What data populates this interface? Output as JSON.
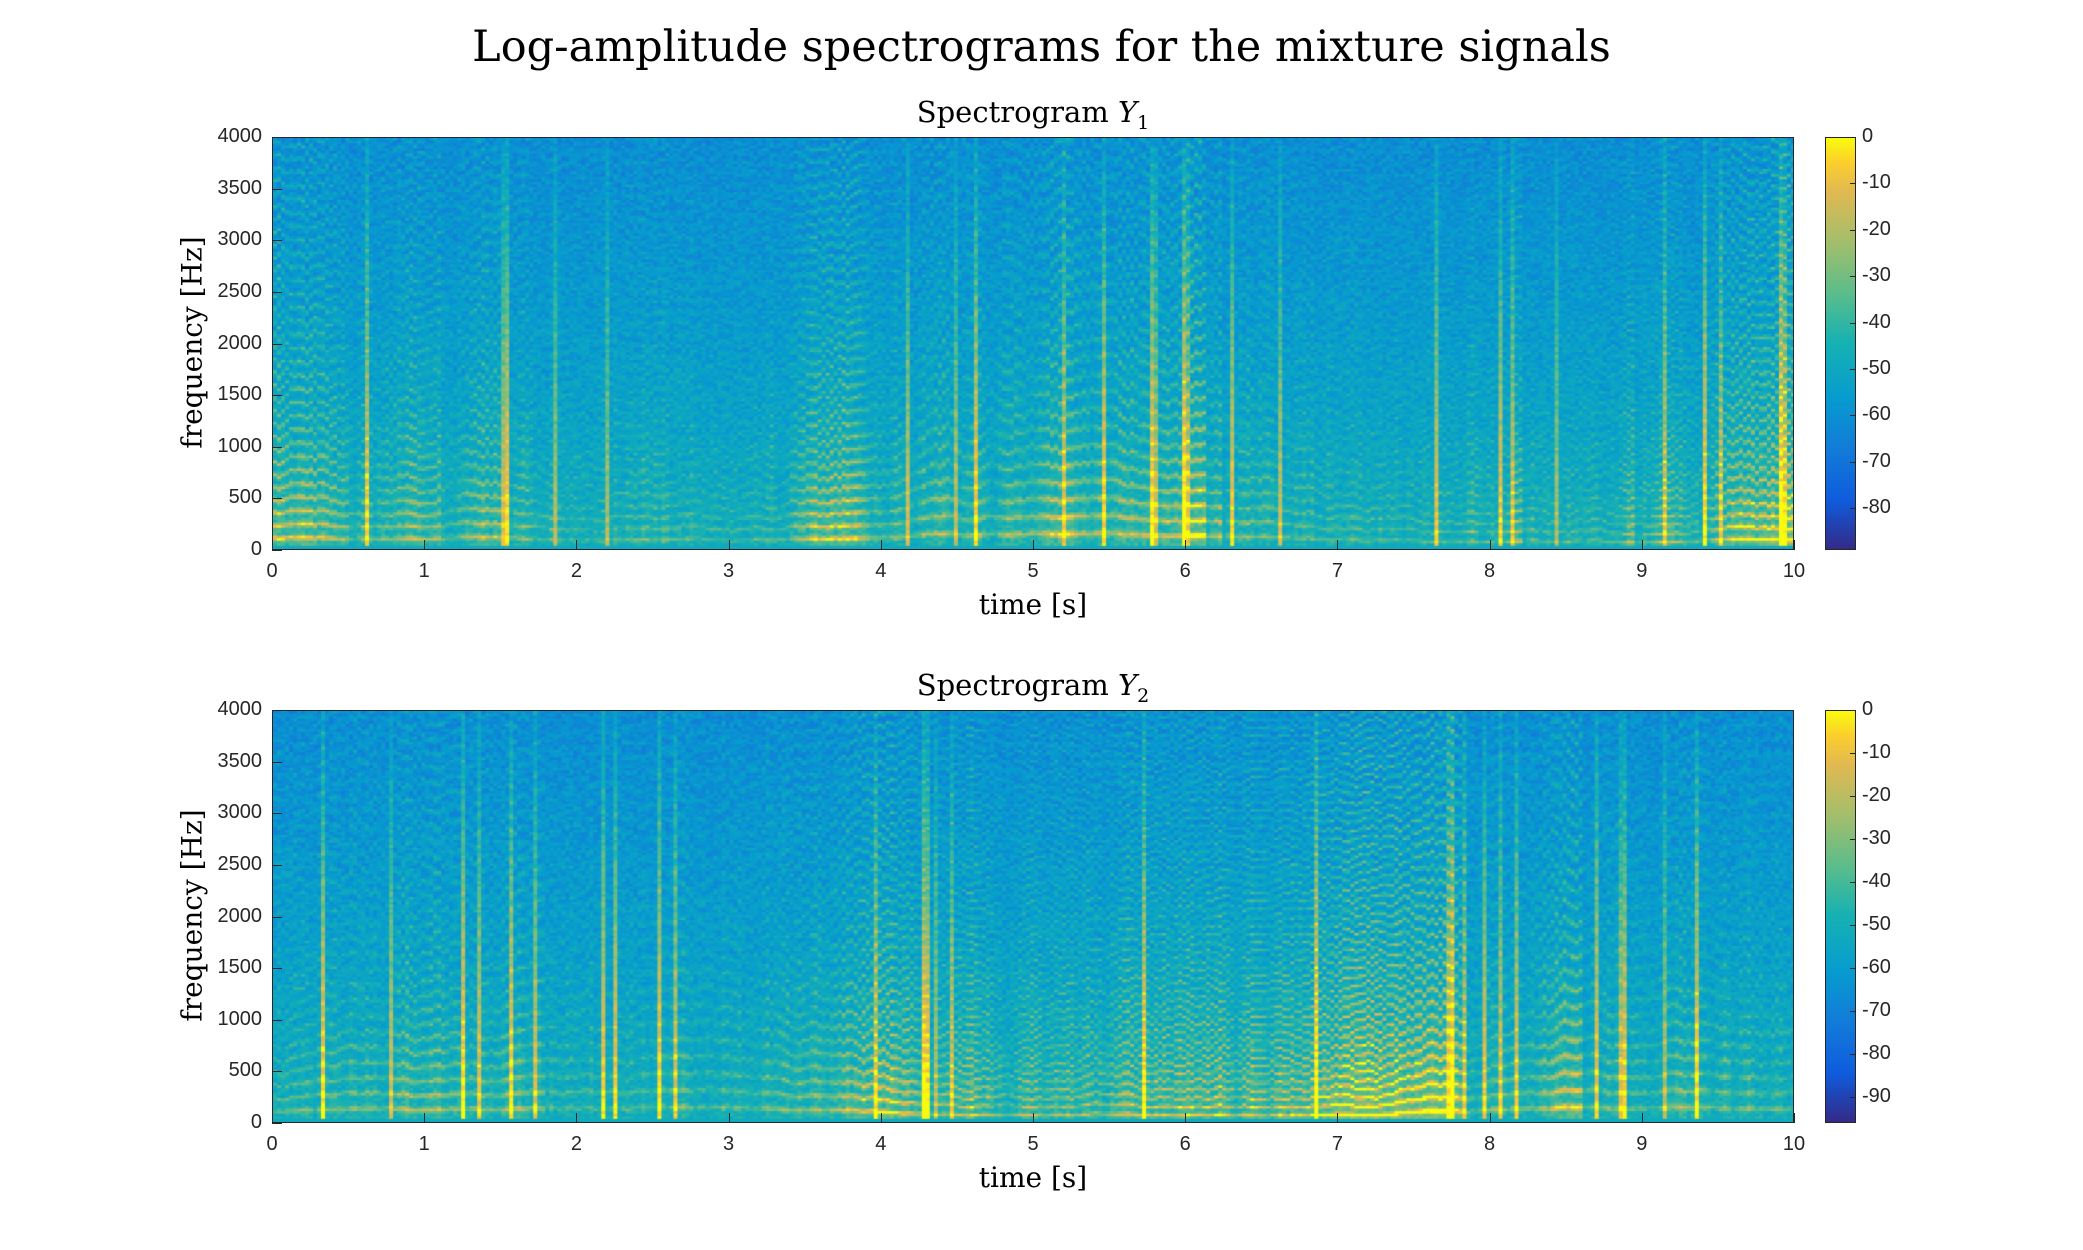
{
  "figure_title": "Log-amplitude spectrograms for the mixture signals",
  "chart_data": [
    {
      "type": "heatmap",
      "title_prefix": "Spectrogram",
      "title_symbol": "Y",
      "title_sub": "1",
      "xlabel": "time [s]",
      "ylabel": "frequency [Hz]",
      "xlim": [
        0,
        10
      ],
      "ylim": [
        0,
        4000
      ],
      "xticks": [
        "0",
        "1",
        "2",
        "3",
        "4",
        "5",
        "6",
        "7",
        "8",
        "9",
        "10"
      ],
      "yticks": [
        "0",
        "500",
        "1000",
        "1500",
        "2000",
        "2500",
        "3000",
        "3500",
        "4000"
      ],
      "colorbar": {
        "range": [
          -89,
          0
        ],
        "ticks": [
          "0",
          "-10",
          "-20",
          "-30",
          "-40",
          "-50",
          "-60",
          "-70",
          "-80"
        ],
        "colormap": "parula"
      }
    },
    {
      "type": "heatmap",
      "title_prefix": "Spectrogram",
      "title_symbol": "Y",
      "title_sub": "2",
      "xlabel": "time [s]",
      "ylabel": "frequency [Hz]",
      "xlim": [
        0,
        10
      ],
      "ylim": [
        0,
        4000
      ],
      "xticks": [
        "0",
        "1",
        "2",
        "3",
        "4",
        "5",
        "6",
        "7",
        "8",
        "9",
        "10"
      ],
      "yticks": [
        "0",
        "500",
        "1000",
        "1500",
        "2000",
        "2500",
        "3000",
        "3500",
        "4000"
      ],
      "colorbar": {
        "range": [
          -96,
          0
        ],
        "ticks": [
          "0",
          "-10",
          "-20",
          "-30",
          "-40",
          "-50",
          "-60",
          "-70",
          "-80",
          "-90"
        ],
        "colormap": "parula"
      }
    }
  ]
}
